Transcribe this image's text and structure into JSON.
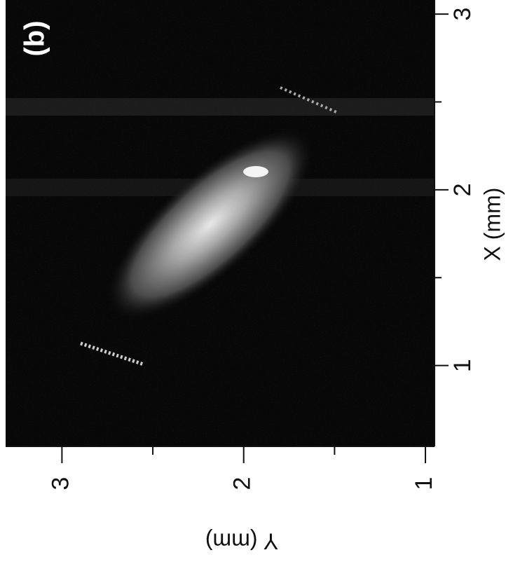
{
  "chart_data": {
    "type": "image",
    "panel_label": "(b)",
    "xlabel": "X (mm)",
    "ylabel": "Y (mm)",
    "xlim": [
      0.54,
      3.08
    ],
    "xticks": [
      1,
      2,
      3
    ],
    "xminor_ticks": [
      1.5,
      2.5
    ],
    "ylim": [
      3.31,
      0.95
    ],
    "yticks": [
      3,
      2,
      1
    ],
    "yminor_ticks": [
      2.5,
      1.5
    ]
  }
}
